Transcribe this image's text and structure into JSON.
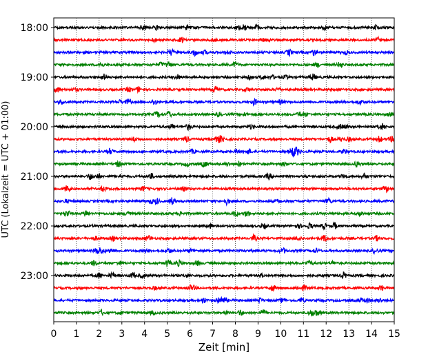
{
  "chart_data": {
    "type": "line",
    "subtype": "helicorder",
    "xlabel": "Zeit  [min]",
    "ylabel": "UTC (Lokalzeit = UTC + 01:00)",
    "xlim": [
      0,
      15
    ],
    "x_ticks": [
      0,
      1,
      2,
      3,
      4,
      5,
      6,
      7,
      8,
      9,
      10,
      11,
      12,
      13,
      14,
      15
    ],
    "x_grid": "dotted vertical at each minute",
    "y_tick_labels": [
      "18:00",
      "19:00",
      "20:00",
      "21:00",
      "22:00",
      "23:00"
    ],
    "trace_interval_minutes": 15,
    "trace_start_times": [
      "18:00",
      "18:15",
      "18:30",
      "18:45",
      "19:00",
      "19:15",
      "19:30",
      "19:45",
      "20:00",
      "20:15",
      "20:30",
      "20:45",
      "21:00",
      "21:15",
      "21:30",
      "21:45",
      "22:00",
      "22:15",
      "22:30",
      "22:45",
      "23:00",
      "23:15",
      "23:30",
      "23:45"
    ],
    "trace_colors": [
      "#000000",
      "#ff0000",
      "#0000ff",
      "#008000"
    ],
    "notable_events": [
      {
        "trace": "20:30",
        "minute": 10.6,
        "amplitude": "high"
      },
      {
        "trace": "18:00",
        "minute": 8.3,
        "amplitude": "medium"
      },
      {
        "trace": "20:15",
        "minute": 7.3,
        "amplitude": "medium"
      },
      {
        "trace": "23:30",
        "minute": 7.4,
        "amplitude": "medium"
      },
      {
        "trace": "22:30",
        "minute": 2.0,
        "amplitude": "medium"
      },
      {
        "trace": "23:45",
        "minute": 11.5,
        "amplitude": "medium"
      }
    ]
  }
}
